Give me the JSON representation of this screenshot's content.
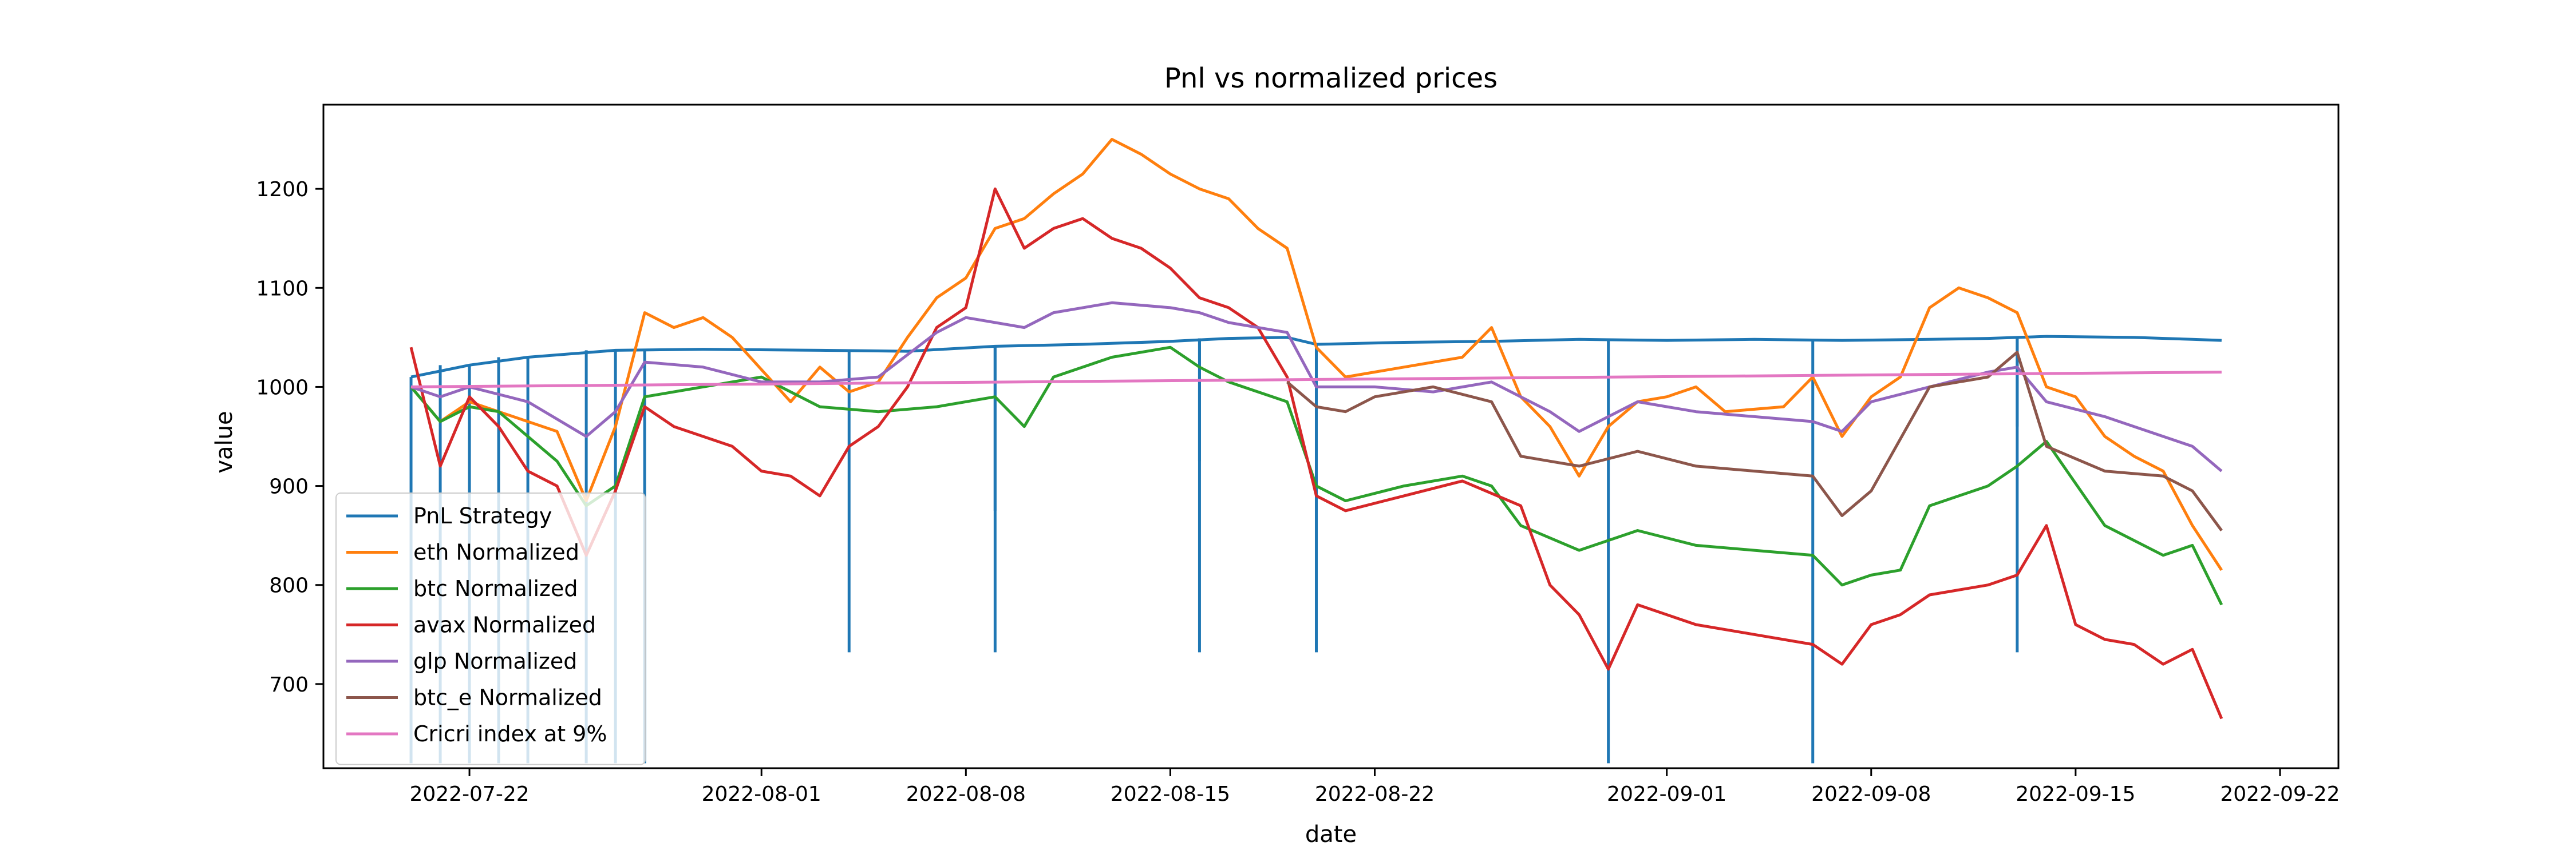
{
  "chart_data": {
    "type": "line",
    "title": "Pnl vs normalized prices",
    "xlabel": "date",
    "ylabel": "value",
    "x_axis": {
      "type": "date",
      "range": [
        "2022-07-17",
        "2022-09-24"
      ],
      "ticks": [
        "2022-07-22",
        "2022-08-01",
        "2022-08-08",
        "2022-08-15",
        "2022-08-22",
        "2022-09-01",
        "2022-09-08",
        "2022-09-15",
        "2022-09-22"
      ]
    },
    "y_axis": {
      "range": [
        615,
        1285
      ],
      "ticks": [
        700,
        800,
        900,
        1000,
        1100,
        1200
      ]
    },
    "grid": false,
    "legend_position": "lower-left",
    "series": [
      {
        "name": "PnL Strategy",
        "color": "#1f77b4",
        "x": [
          "2022-07-20",
          "2022-07-22",
          "2022-07-24",
          "2022-07-27",
          "2022-07-30",
          "2022-08-03",
          "2022-08-06",
          "2022-08-09",
          "2022-08-12",
          "2022-08-15",
          "2022-08-17",
          "2022-08-19",
          "2022-08-20",
          "2022-08-23",
          "2022-08-26",
          "2022-08-29",
          "2022-09-01",
          "2022-09-04",
          "2022-09-07",
          "2022-09-10",
          "2022-09-12",
          "2022-09-14",
          "2022-09-17",
          "2022-09-19",
          "2022-09-20"
        ],
        "y": [
          1010,
          1022,
          1030,
          1037,
          1038,
          1037,
          1036,
          1041,
          1043,
          1046,
          1049,
          1050,
          1043,
          1045,
          1046,
          1048,
          1047,
          1048,
          1047,
          1048,
          1049,
          1051,
          1050,
          1048,
          1047
        ],
        "spikes": [
          {
            "x": "2022-07-20",
            "y": 620
          },
          {
            "x": "2022-07-21",
            "y": 620
          },
          {
            "x": "2022-07-22",
            "y": 620
          },
          {
            "x": "2022-07-23",
            "y": 620
          },
          {
            "x": "2022-07-24",
            "y": 620
          },
          {
            "x": "2022-07-26",
            "y": 620
          },
          {
            "x": "2022-07-27",
            "y": 620
          },
          {
            "x": "2022-07-28",
            "y": 620
          },
          {
            "x": "2022-08-04",
            "y": 732
          },
          {
            "x": "2022-08-09",
            "y": 875
          },
          {
            "x": "2022-08-09",
            "y": 732
          },
          {
            "x": "2022-08-16",
            "y": 925
          },
          {
            "x": "2022-08-16",
            "y": 732
          },
          {
            "x": "2022-08-20",
            "y": 835
          },
          {
            "x": "2022-08-20",
            "y": 732
          },
          {
            "x": "2022-08-30",
            "y": 620
          },
          {
            "x": "2022-09-06",
            "y": 620
          },
          {
            "x": "2022-09-13",
            "y": 732
          },
          {
            "x": "2022-09-13",
            "y": 960
          }
        ]
      },
      {
        "name": "eth Normalized",
        "color": "#ff7f0e",
        "x": [
          "2022-07-20",
          "2022-07-21",
          "2022-07-22",
          "2022-07-23",
          "2022-07-25",
          "2022-07-26",
          "2022-07-27",
          "2022-07-28",
          "2022-07-29",
          "2022-07-30",
          "2022-07-31",
          "2022-08-02",
          "2022-08-03",
          "2022-08-04",
          "2022-08-05",
          "2022-08-06",
          "2022-08-07",
          "2022-08-08",
          "2022-08-09",
          "2022-08-10",
          "2022-08-11",
          "2022-08-12",
          "2022-08-13",
          "2022-08-14",
          "2022-08-15",
          "2022-08-16",
          "2022-08-17",
          "2022-08-18",
          "2022-08-19",
          "2022-08-20",
          "2022-08-21",
          "2022-08-23",
          "2022-08-25",
          "2022-08-26",
          "2022-08-27",
          "2022-08-28",
          "2022-08-29",
          "2022-08-30",
          "2022-08-31",
          "2022-09-01",
          "2022-09-02",
          "2022-09-03",
          "2022-09-05",
          "2022-09-06",
          "2022-09-07",
          "2022-09-08",
          "2022-09-09",
          "2022-09-10",
          "2022-09-11",
          "2022-09-12",
          "2022-09-13",
          "2022-09-14",
          "2022-09-15",
          "2022-09-16",
          "2022-09-17",
          "2022-09-18",
          "2022-09-19",
          "2022-09-20"
        ],
        "y": [
          1000,
          965,
          985,
          975,
          955,
          885,
          960,
          1075,
          1060,
          1070,
          1050,
          985,
          1020,
          995,
          1005,
          1050,
          1090,
          1110,
          1160,
          1170,
          1195,
          1215,
          1250,
          1235,
          1215,
          1200,
          1190,
          1160,
          1140,
          1040,
          1010,
          1020,
          1030,
          1060,
          990,
          960,
          910,
          960,
          985,
          990,
          1000,
          975,
          980,
          1010,
          950,
          990,
          1010,
          1080,
          1100,
          1090,
          1075,
          1000,
          990,
          950,
          930,
          915,
          860,
          815
        ]
      },
      {
        "name": "btc Normalized",
        "color": "#2ca02c",
        "x": [
          "2022-07-20",
          "2022-07-21",
          "2022-07-22",
          "2022-07-23",
          "2022-07-25",
          "2022-07-26",
          "2022-07-27",
          "2022-07-28",
          "2022-07-30",
          "2022-08-01",
          "2022-08-03",
          "2022-08-05",
          "2022-08-07",
          "2022-08-09",
          "2022-08-10",
          "2022-08-11",
          "2022-08-13",
          "2022-08-15",
          "2022-08-16",
          "2022-08-17",
          "2022-08-19",
          "2022-08-20",
          "2022-08-21",
          "2022-08-23",
          "2022-08-25",
          "2022-08-26",
          "2022-08-27",
          "2022-08-29",
          "2022-08-31",
          "2022-09-02",
          "2022-09-04",
          "2022-09-06",
          "2022-09-07",
          "2022-09-08",
          "2022-09-09",
          "2022-09-10",
          "2022-09-12",
          "2022-09-13",
          "2022-09-14",
          "2022-09-16",
          "2022-09-18",
          "2022-09-19",
          "2022-09-20"
        ],
        "y": [
          1000,
          965,
          980,
          975,
          925,
          880,
          900,
          990,
          1000,
          1010,
          980,
          975,
          980,
          990,
          960,
          1010,
          1030,
          1040,
          1020,
          1005,
          985,
          900,
          885,
          900,
          910,
          900,
          860,
          835,
          855,
          840,
          835,
          830,
          800,
          810,
          815,
          880,
          900,
          920,
          945,
          860,
          830,
          840,
          780
        ]
      },
      {
        "name": "avax Normalized",
        "color": "#d62728",
        "x": [
          "2022-07-20",
          "2022-07-21",
          "2022-07-22",
          "2022-07-23",
          "2022-07-24",
          "2022-07-25",
          "2022-07-26",
          "2022-07-27",
          "2022-07-28",
          "2022-07-29",
          "2022-07-30",
          "2022-07-31",
          "2022-08-01",
          "2022-08-02",
          "2022-08-03",
          "2022-08-04",
          "2022-08-05",
          "2022-08-06",
          "2022-08-07",
          "2022-08-08",
          "2022-08-09",
          "2022-08-10",
          "2022-08-11",
          "2022-08-12",
          "2022-08-13",
          "2022-08-14",
          "2022-08-15",
          "2022-08-16",
          "2022-08-17",
          "2022-08-18",
          "2022-08-19",
          "2022-08-20",
          "2022-08-21",
          "2022-08-23",
          "2022-08-25",
          "2022-08-27",
          "2022-08-28",
          "2022-08-29",
          "2022-08-30",
          "2022-08-31",
          "2022-09-02",
          "2022-09-04",
          "2022-09-06",
          "2022-09-07",
          "2022-09-08",
          "2022-09-09",
          "2022-09-10",
          "2022-09-12",
          "2022-09-13",
          "2022-09-14",
          "2022-09-15",
          "2022-09-16",
          "2022-09-17",
          "2022-09-18",
          "2022-09-19",
          "2022-09-20"
        ],
        "y": [
          1040,
          920,
          990,
          960,
          915,
          900,
          830,
          895,
          980,
          960,
          950,
          940,
          915,
          910,
          890,
          940,
          960,
          1000,
          1060,
          1080,
          1200,
          1140,
          1160,
          1170,
          1150,
          1140,
          1120,
          1090,
          1080,
          1060,
          1010,
          890,
          875,
          890,
          905,
          880,
          800,
          770,
          715,
          780,
          760,
          750,
          740,
          720,
          760,
          770,
          790,
          800,
          810,
          860,
          760,
          745,
          740,
          720,
          735,
          665
        ]
      },
      {
        "name": "glp Normalized",
        "color": "#9467bd",
        "x": [
          "2022-07-20",
          "2022-07-21",
          "2022-07-22",
          "2022-07-24",
          "2022-07-26",
          "2022-07-27",
          "2022-07-28",
          "2022-07-30",
          "2022-08-01",
          "2022-08-03",
          "2022-08-05",
          "2022-08-07",
          "2022-08-08",
          "2022-08-10",
          "2022-08-11",
          "2022-08-13",
          "2022-08-15",
          "2022-08-16",
          "2022-08-17",
          "2022-08-19",
          "2022-08-20",
          "2022-08-22",
          "2022-08-24",
          "2022-08-26",
          "2022-08-28",
          "2022-08-29",
          "2022-08-31",
          "2022-09-02",
          "2022-09-04",
          "2022-09-06",
          "2022-09-07",
          "2022-09-08",
          "2022-09-10",
          "2022-09-12",
          "2022-09-13",
          "2022-09-14",
          "2022-09-16",
          "2022-09-18",
          "2022-09-19",
          "2022-09-20"
        ],
        "y": [
          1000,
          990,
          1000,
          985,
          950,
          975,
          1025,
          1020,
          1005,
          1005,
          1010,
          1055,
          1070,
          1060,
          1075,
          1085,
          1080,
          1075,
          1065,
          1055,
          1000,
          1000,
          995,
          1005,
          975,
          955,
          985,
          975,
          970,
          965,
          955,
          985,
          1000,
          1015,
          1020,
          985,
          970,
          950,
          940,
          915
        ]
      },
      {
        "name": "btc_e Normalized",
        "color": "#8c564b",
        "x": [
          "2022-08-19",
          "2022-08-20",
          "2022-08-21",
          "2022-08-22",
          "2022-08-24",
          "2022-08-26",
          "2022-08-27",
          "2022-08-28",
          "2022-08-29",
          "2022-08-31",
          "2022-09-02",
          "2022-09-04",
          "2022-09-06",
          "2022-09-07",
          "2022-09-08",
          "2022-09-10",
          "2022-09-12",
          "2022-09-13",
          "2022-09-14",
          "2022-09-16",
          "2022-09-18",
          "2022-09-19",
          "2022-09-20"
        ],
        "y": [
          1005,
          980,
          975,
          990,
          1000,
          985,
          930,
          925,
          920,
          935,
          920,
          915,
          910,
          870,
          895,
          1000,
          1010,
          1035,
          940,
          915,
          910,
          895,
          855
        ]
      },
      {
        "name": "Cricri index at 9%",
        "color": "#e377c2",
        "x": [
          "2022-07-20",
          "2022-09-20"
        ],
        "y": [
          1000,
          1015
        ]
      }
    ]
  }
}
